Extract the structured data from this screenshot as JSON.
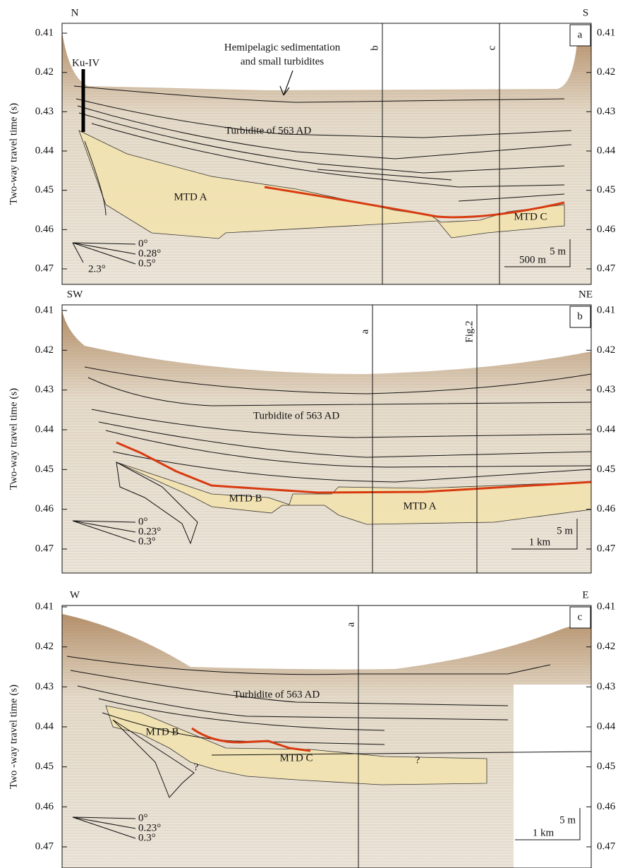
{
  "panels": [
    {
      "id": "a",
      "left_direction": "N",
      "right_direction": "S",
      "y_axis_label": "Two-way travel time  (s)",
      "yticks": [
        0.41,
        0.42,
        0.43,
        0.44,
        0.45,
        0.46,
        0.47
      ],
      "profile_lines": [
        "b",
        "c"
      ],
      "borehole": "Ku-IV",
      "annotations": [
        "Hemipelagic sedimentation",
        "and small turbidites",
        "Turbidite of 563 AD"
      ],
      "units": [
        "MTD A",
        "MTD C"
      ],
      "scale": {
        "vertical": "5 m",
        "horizontal": "500 m"
      },
      "angles": [
        "0°",
        "0.28°",
        "0.5°",
        "2.3°"
      ]
    },
    {
      "id": "b",
      "left_direction": "SW",
      "right_direction": "NE",
      "y_axis_label": "Two-way travel time (s)",
      "yticks": [
        0.41,
        0.42,
        0.43,
        0.44,
        0.45,
        0.46,
        0.47
      ],
      "profile_lines": [
        "a",
        "Fig.2"
      ],
      "annotations": [
        "Turbidite of 563 AD"
      ],
      "units": [
        "MTD B",
        "MTD A"
      ],
      "scale": {
        "vertical": "5 m",
        "horizontal": "1 km"
      },
      "angles": [
        "0°",
        "0.23°",
        "0.3°"
      ]
    },
    {
      "id": "c",
      "left_direction": "W",
      "right_direction": "E",
      "y_axis_label": "Two -way travel time (s)",
      "yticks": [
        0.41,
        0.42,
        0.43,
        0.44,
        0.45,
        0.46,
        0.47
      ],
      "profile_lines": [
        "a"
      ],
      "annotations": [
        "Turbidite of 563 AD",
        "?",
        "?"
      ],
      "units": [
        "MTD B",
        "MTD C"
      ],
      "scale": {
        "vertical": "5 m",
        "horizontal": "1 km"
      },
      "angles": [
        "0°",
        "0.23°",
        "0.3°"
      ]
    }
  ]
}
